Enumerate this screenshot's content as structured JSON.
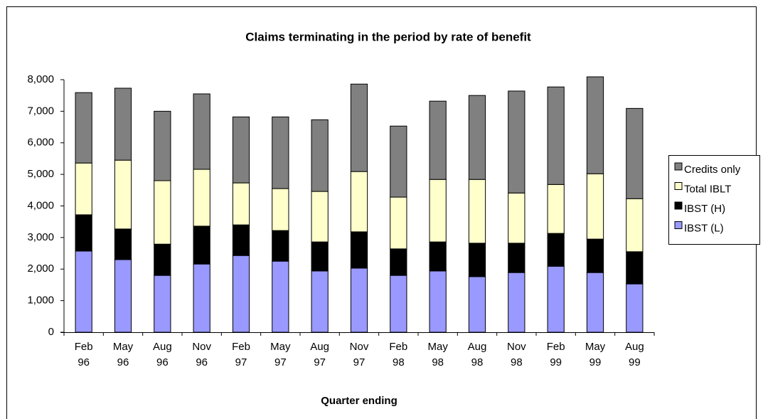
{
  "chart_data": {
    "type": "stacked_bar",
    "title": "Claims terminating in the period by rate of benefit",
    "x_label": "Quarter ending",
    "categories": [
      "Feb 96",
      "May 96",
      "Aug 96",
      "Nov 96",
      "Feb 97",
      "May 97",
      "Aug 97",
      "Nov 97",
      "Feb 98",
      "May 98",
      "Aug 98",
      "Nov 98",
      "Feb 99",
      "May 99",
      "Aug 99"
    ],
    "series": [
      {
        "name": "IBST (L)",
        "color": "#9999ff",
        "values": [
          2570,
          2300,
          1800,
          2160,
          2430,
          2250,
          1940,
          2030,
          1800,
          1940,
          1760,
          1890,
          2090,
          1890,
          1530
        ]
      },
      {
        "name": "IBST (H)",
        "color": "#000000",
        "values": [
          1150,
          970,
          990,
          1200,
          970,
          970,
          920,
          1150,
          840,
          920,
          1060,
          930,
          1040,
          1060,
          1020
        ]
      },
      {
        "name": "Total IBLT",
        "color": "#ffffcc",
        "values": [
          1640,
          2180,
          2010,
          1800,
          1330,
          1330,
          1600,
          1910,
          1640,
          1980,
          2020,
          1590,
          1550,
          2070,
          1680
        ]
      },
      {
        "name": "Credits only",
        "color": "#808080",
        "values": [
          2230,
          2280,
          2200,
          2390,
          2090,
          2270,
          2270,
          2770,
          2250,
          2480,
          2660,
          3230,
          3090,
          3070,
          2860
        ]
      }
    ],
    "ylim": [
      0,
      8000
    ],
    "yticks": [
      0,
      {
        "value": 1000,
        "label": "1,000"
      },
      {
        "value": 2000,
        "label": "2,000"
      },
      {
        "value": 3000,
        "label": "3,000"
      },
      {
        "value": 4000,
        "label": "4,000"
      },
      {
        "value": 5000,
        "label": "5,000"
      },
      {
        "value": 6000,
        "label": "6,000"
      },
      {
        "value": 7000,
        "label": "7,000"
      },
      {
        "value": 8000,
        "label": "8,000"
      }
    ],
    "legend": "right",
    "grid": false
  }
}
